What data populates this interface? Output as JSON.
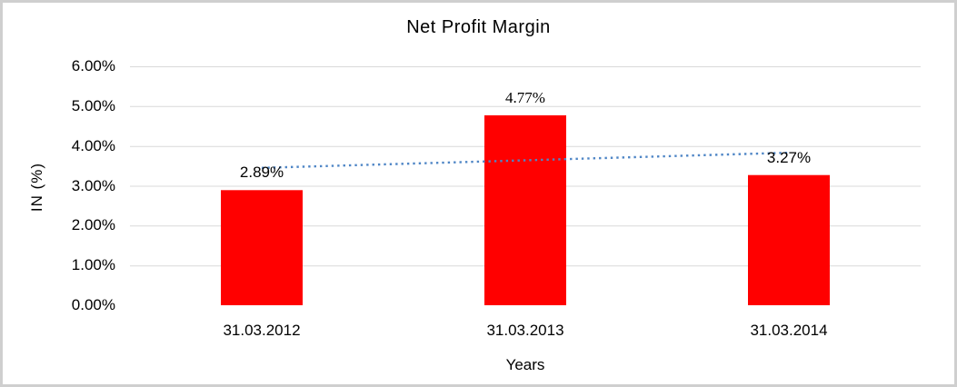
{
  "window": {
    "background": "#FFFFFF",
    "border_color": "#CFCFCF"
  },
  "chart_data": {
    "type": "bar",
    "title": "Net Profit Margin",
    "categories": [
      "31.03.2012",
      "31.03.2013",
      "31.03.2014"
    ],
    "values": [
      2.89,
      4.77,
      3.27
    ],
    "data_labels": [
      "2.89%",
      "4.77%",
      "3.27%"
    ],
    "data_label_fonts": [
      "sans",
      "serif",
      "sans"
    ],
    "xlabel": "Years",
    "ylabel": "IN (%)",
    "ylim": [
      0,
      6
    ],
    "yticks": [
      0,
      1,
      2,
      3,
      4,
      5,
      6
    ],
    "ytick_labels": [
      "0.00%",
      "1.00%",
      "2.00%",
      "3.00%",
      "4.00%",
      "5.00%",
      "6.00%"
    ],
    "grid": true,
    "legend": "none",
    "bar_color": "#FF0000",
    "gridline_color": "#D9D9D9",
    "trendline": {
      "type": "linear",
      "style": "dotted",
      "color": "#4F86C6",
      "x_span_categories": [
        0,
        2
      ],
      "y_endpoints": [
        3.45,
        3.83
      ]
    }
  }
}
